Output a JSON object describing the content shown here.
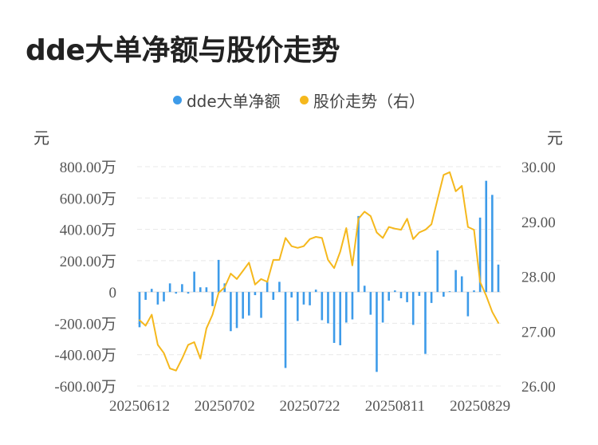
{
  "page_title": "dde大单净额与股价走势",
  "legend": {
    "dde_label": "dde大单净额",
    "price_label": "股价走势（右）"
  },
  "units": {
    "left": "元",
    "right": "元"
  },
  "colors": {
    "bar": "#3d9be9",
    "line": "#f5b81d",
    "grid": "#e8e8e8"
  },
  "chart_data": {
    "type": "bar",
    "title": "dde大单净额与股价走势",
    "left_axis": {
      "label": "元",
      "ticks": [
        "800.00万",
        "600.00万",
        "400.00万",
        "200.00万",
        "0",
        "-200.00万",
        "-400.00万",
        "-600.00万"
      ],
      "tick_values": [
        800,
        600,
        400,
        200,
        0,
        -200,
        -400,
        -600
      ],
      "ylim": [
        -600,
        800
      ]
    },
    "right_axis": {
      "label": "元",
      "ticks": [
        "30.00",
        "29.00",
        "28.00",
        "27.00",
        "26.00"
      ],
      "tick_values": [
        30,
        29,
        28,
        27,
        26
      ],
      "ylim": [
        26,
        30
      ]
    },
    "x_tick_labels": [
      "20250612",
      "20250702",
      "20250722",
      "20250811",
      "20250829"
    ],
    "x_tick_index": [
      0,
      14,
      28,
      42,
      56
    ],
    "grid": true,
    "series": [
      {
        "name": "dde大单净额",
        "type": "bar",
        "axis": "left",
        "values": [
          -225,
          -50,
          20,
          -80,
          -60,
          55,
          -10,
          50,
          -10,
          130,
          30,
          30,
          -90,
          205,
          55,
          -250,
          -230,
          -170,
          -150,
          -20,
          -165,
          70,
          -50,
          65,
          -485,
          -35,
          -185,
          -80,
          -85,
          15,
          -180,
          -200,
          -325,
          -340,
          -195,
          -175,
          485,
          40,
          -145,
          -510,
          -195,
          -55,
          10,
          -40,
          -65,
          -210,
          -25,
          -395,
          -70,
          265,
          -30,
          5,
          140,
          100,
          -155,
          10,
          475,
          710,
          620,
          175
        ]
      },
      {
        "name": "股价走势（右）",
        "type": "line",
        "axis": "right",
        "values": [
          27.2,
          27.1,
          27.3,
          26.75,
          26.6,
          26.32,
          26.28,
          26.5,
          26.75,
          26.8,
          26.5,
          27.05,
          27.3,
          27.7,
          27.8,
          28.05,
          27.95,
          28.1,
          28.25,
          27.85,
          27.95,
          27.9,
          28.3,
          28.3,
          28.7,
          28.55,
          28.52,
          28.55,
          28.68,
          28.72,
          28.7,
          28.3,
          28.15,
          28.45,
          28.88,
          28.2,
          29.05,
          29.18,
          29.1,
          28.8,
          28.7,
          28.9,
          28.87,
          28.85,
          29.05,
          28.68,
          28.8,
          28.85,
          28.95,
          29.4,
          29.85,
          29.9,
          29.55,
          29.65,
          28.9,
          28.85,
          27.9,
          27.65,
          27.35,
          27.15
        ]
      }
    ]
  }
}
